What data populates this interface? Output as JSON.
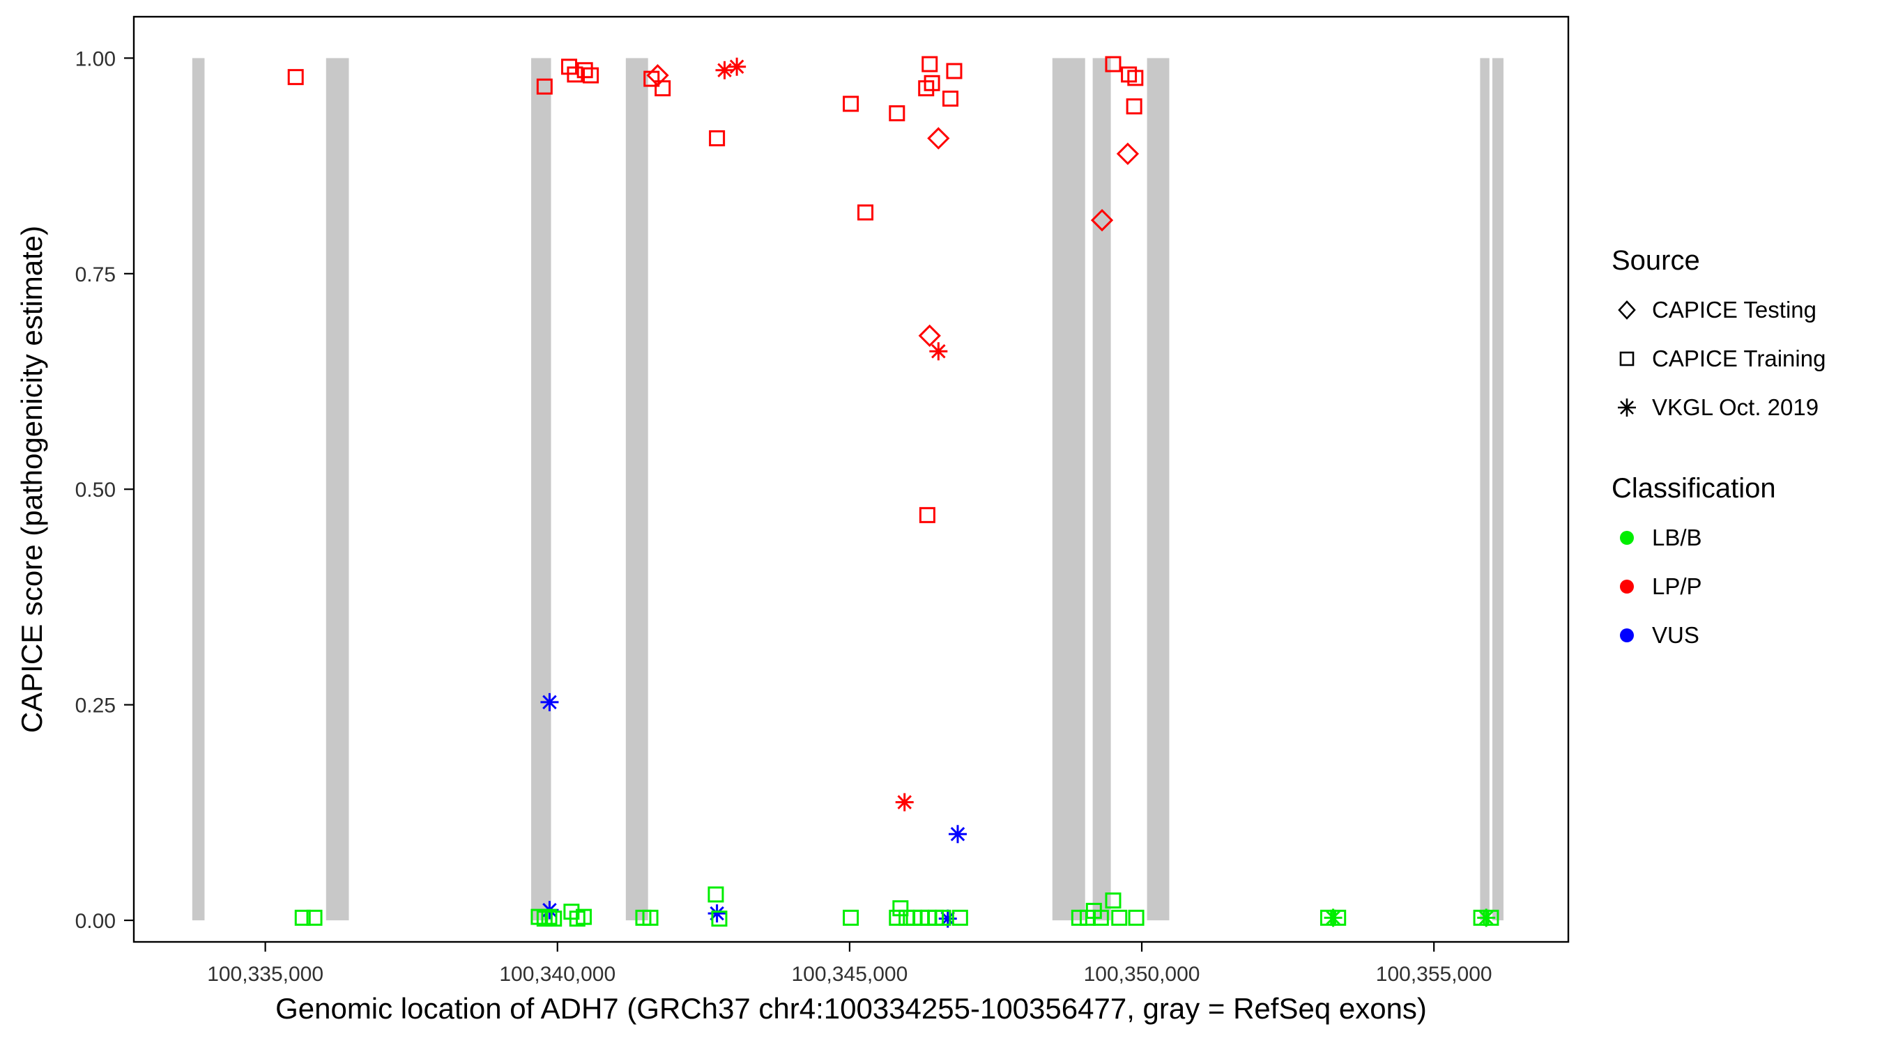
{
  "chart_data": {
    "type": "scatter",
    "title": "",
    "xlabel": "Genomic location of ADH7 (GRCh37 chr4:100334255-100356477, gray = RefSeq exons)",
    "ylabel": "CAPICE score (pathogenicity estimate)",
    "x_domain": [
      100332750,
      100357300
    ],
    "y_domain": [
      -0.025,
      1.048
    ],
    "x_ticks": [
      {
        "value": 100335000,
        "label": "100,335,000"
      },
      {
        "value": 100340000,
        "label": "100,340,000"
      },
      {
        "value": 100345000,
        "label": "100,345,000"
      },
      {
        "value": 100350000,
        "label": "100,350,000"
      },
      {
        "value": 100355000,
        "label": "100,355,000"
      }
    ],
    "y_ticks": [
      {
        "value": 0.0,
        "label": "0.00"
      },
      {
        "value": 0.25,
        "label": "0.25"
      },
      {
        "value": 0.5,
        "label": "0.50"
      },
      {
        "value": 0.75,
        "label": "0.75"
      },
      {
        "value": 1.0,
        "label": "1.00"
      }
    ],
    "grid": "off",
    "legend_position": "right",
    "exon_color": "#C8C8C8",
    "exon_y_range": [
      0.0,
      1.0
    ],
    "exons": [
      [
        100333750,
        100333960
      ],
      [
        100336040,
        100336430
      ],
      [
        100339550,
        100339890
      ],
      [
        100341170,
        100341550
      ],
      [
        100348470,
        100349030
      ],
      [
        100349160,
        100349470
      ],
      [
        100350090,
        100350470
      ],
      [
        100355790,
        100355950
      ],
      [
        100356000,
        100356190
      ]
    ],
    "classification_colors": {
      "LB/B": "#00EE00",
      "LP/P": "#FF0000",
      "VUS": "#0000FF"
    },
    "source_shapes": {
      "testing": "diamond",
      "training": "square",
      "vkgl": "asterisk"
    },
    "source_labels": {
      "testing": "CAPICE Testing",
      "training": "CAPICE Training",
      "vkgl": "VKGL Oct. 2019"
    },
    "point_format": [
      "x_genomic_position",
      "capice_score",
      "source",
      "classification"
    ],
    "points": [
      [
        100335520,
        0.978,
        "training",
        "LP/P"
      ],
      [
        100339780,
        0.967,
        "training",
        "LP/P"
      ],
      [
        100340200,
        0.99,
        "training",
        "LP/P"
      ],
      [
        100340300,
        0.981,
        "training",
        "LP/P"
      ],
      [
        100340470,
        0.986,
        "training",
        "LP/P"
      ],
      [
        100340570,
        0.98,
        "training",
        "LP/P"
      ],
      [
        100341610,
        0.976,
        "training",
        "LP/P"
      ],
      [
        100341715,
        0.98,
        "testing",
        "LP/P"
      ],
      [
        100341800,
        0.965,
        "training",
        "LP/P"
      ],
      [
        100342730,
        0.907,
        "training",
        "LP/P"
      ],
      [
        100342860,
        0.986,
        "vkgl",
        "LP/P"
      ],
      [
        100343070,
        0.99,
        "vkgl",
        "LP/P"
      ],
      [
        100345020,
        0.947,
        "training",
        "LP/P"
      ],
      [
        100345270,
        0.821,
        "training",
        "LP/P"
      ],
      [
        100345810,
        0.936,
        "training",
        "LP/P"
      ],
      [
        100345940,
        0.137,
        "vkgl",
        "LP/P"
      ],
      [
        100346310,
        0.965,
        "training",
        "LP/P"
      ],
      [
        100346330,
        0.47,
        "training",
        "LP/P"
      ],
      [
        100346370,
        0.993,
        "training",
        "LP/P"
      ],
      [
        100346370,
        0.678,
        "testing",
        "LP/P"
      ],
      [
        100346410,
        0.971,
        "training",
        "LP/P"
      ],
      [
        100346520,
        0.907,
        "testing",
        "LP/P"
      ],
      [
        100346520,
        0.66,
        "vkgl",
        "LP/P"
      ],
      [
        100346725,
        0.953,
        "training",
        "LP/P"
      ],
      [
        100346790,
        0.985,
        "training",
        "LP/P"
      ],
      [
        100349320,
        0.812,
        "testing",
        "LP/P"
      ],
      [
        100349510,
        0.993,
        "training",
        "LP/P"
      ],
      [
        100349760,
        0.889,
        "testing",
        "LP/P"
      ],
      [
        100349780,
        0.981,
        "training",
        "LP/P"
      ],
      [
        100349870,
        0.944,
        "training",
        "LP/P"
      ],
      [
        100349890,
        0.977,
        "training",
        "LP/P"
      ],
      [
        100339865,
        0.253,
        "vkgl",
        "VUS"
      ],
      [
        100339865,
        0.012,
        "vkgl",
        "VUS"
      ],
      [
        100342730,
        0.008,
        "vkgl",
        "VUS"
      ],
      [
        100346680,
        0.002,
        "vkgl",
        "VUS"
      ],
      [
        100346850,
        0.1,
        "vkgl",
        "VUS"
      ],
      [
        100335640,
        0.003,
        "training",
        "LB/B"
      ],
      [
        100335840,
        0.003,
        "training",
        "LB/B"
      ],
      [
        100339680,
        0.004,
        "training",
        "LB/B"
      ],
      [
        100339780,
        0.002,
        "training",
        "LB/B"
      ],
      [
        100339860,
        0.004,
        "training",
        "LB/B"
      ],
      [
        100339940,
        0.002,
        "training",
        "LB/B"
      ],
      [
        100340240,
        0.01,
        "training",
        "LB/B"
      ],
      [
        100340340,
        0.002,
        "training",
        "LB/B"
      ],
      [
        100340450,
        0.004,
        "training",
        "LB/B"
      ],
      [
        100341470,
        0.003,
        "training",
        "LB/B"
      ],
      [
        100341590,
        0.003,
        "training",
        "LB/B"
      ],
      [
        100342710,
        0.03,
        "training",
        "LB/B"
      ],
      [
        100342770,
        0.002,
        "training",
        "LB/B"
      ],
      [
        100345020,
        0.003,
        "training",
        "LB/B"
      ],
      [
        100345810,
        0.003,
        "training",
        "LB/B"
      ],
      [
        100345870,
        0.014,
        "training",
        "LB/B"
      ],
      [
        100345975,
        0.003,
        "training",
        "LB/B"
      ],
      [
        100346100,
        0.003,
        "training",
        "LB/B"
      ],
      [
        100346225,
        0.003,
        "training",
        "LB/B"
      ],
      [
        100346350,
        0.003,
        "training",
        "LB/B"
      ],
      [
        100346475,
        0.003,
        "training",
        "LB/B"
      ],
      [
        100346600,
        0.003,
        "training",
        "LB/B"
      ],
      [
        100346890,
        0.003,
        "training",
        "LB/B"
      ],
      [
        100348930,
        0.003,
        "training",
        "LB/B"
      ],
      [
        100349075,
        0.003,
        "training",
        "LB/B"
      ],
      [
        100349180,
        0.011,
        "training",
        "LB/B"
      ],
      [
        100349300,
        0.003,
        "training",
        "LB/B"
      ],
      [
        100349510,
        0.023,
        "training",
        "LB/B"
      ],
      [
        100349615,
        0.003,
        "training",
        "LB/B"
      ],
      [
        100349905,
        0.003,
        "training",
        "LB/B"
      ],
      [
        100353190,
        0.003,
        "training",
        "LB/B"
      ],
      [
        100353275,
        0.003,
        "vkgl",
        "LB/B"
      ],
      [
        100353360,
        0.003,
        "training",
        "LB/B"
      ],
      [
        100355810,
        0.003,
        "training",
        "LB/B"
      ],
      [
        100355895,
        0.003,
        "vkgl",
        "LB/B"
      ],
      [
        100355975,
        0.003,
        "training",
        "LB/B"
      ]
    ]
  },
  "legend": {
    "source_title": "Source",
    "source_items": [
      {
        "label": "CAPICE Testing",
        "shape": "diamond"
      },
      {
        "label": "CAPICE Training",
        "shape": "square"
      },
      {
        "label": "VKGL Oct. 2019",
        "shape": "asterisk"
      }
    ],
    "classification_title": "Classification",
    "classification_items": [
      {
        "label": "LB/B",
        "color": "#00EE00"
      },
      {
        "label": "LP/P",
        "color": "#FF0000"
      },
      {
        "label": "VUS",
        "color": "#0000FF"
      }
    ]
  }
}
